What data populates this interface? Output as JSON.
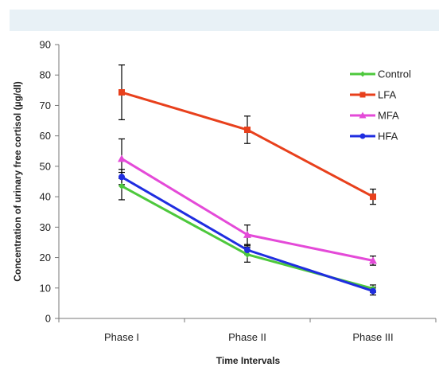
{
  "chart_data": {
    "type": "line",
    "title": "",
    "xlabel": "Time Intervals",
    "ylabel": "Concentration of urinary free cortisol (µg/dl)",
    "categories": [
      "Phase I",
      "Phase II",
      "Phase III"
    ],
    "ylim": [
      0,
      90
    ],
    "yticks": [
      0,
      10,
      20,
      30,
      40,
      50,
      60,
      70,
      80,
      90
    ],
    "grid": false,
    "legend_position": "top-right",
    "series": [
      {
        "name": "Control",
        "color": "#4dc83c",
        "marker": "diamond",
        "values": [
          43.5,
          21,
          9.8
        ],
        "error": [
          4.5,
          2.5,
          1.2
        ]
      },
      {
        "name": "LFA",
        "color": "#e8401c",
        "marker": "square",
        "values": [
          74.3,
          62,
          40
        ],
        "error": [
          9,
          4.5,
          2.5
        ]
      },
      {
        "name": "MFA",
        "color": "#e44ad8",
        "marker": "triangle",
        "values": [
          52.5,
          27.5,
          19
        ],
        "error": [
          6.5,
          3.2,
          1.5
        ]
      },
      {
        "name": "HFA",
        "color": "#1f2de0",
        "marker": "circle",
        "values": [
          46.5,
          22.5,
          9
        ],
        "error": [
          2.5,
          1.5,
          1.3
        ]
      }
    ]
  }
}
